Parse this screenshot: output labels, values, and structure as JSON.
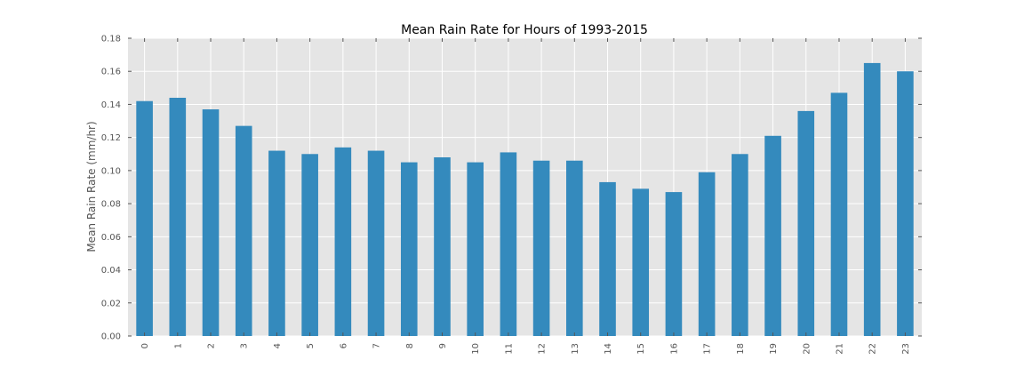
{
  "chart_data": {
    "type": "bar",
    "title": "Mean Rain Rate for Hours of 1993-2015",
    "xlabel": "",
    "ylabel": "Mean Rain Rate (mm/hr)",
    "categories": [
      "0",
      "1",
      "2",
      "3",
      "4",
      "5",
      "6",
      "7",
      "8",
      "9",
      "10",
      "11",
      "12",
      "13",
      "14",
      "15",
      "16",
      "17",
      "18",
      "19",
      "20",
      "21",
      "22",
      "23"
    ],
    "values": [
      0.142,
      0.144,
      0.137,
      0.127,
      0.112,
      0.11,
      0.114,
      0.112,
      0.105,
      0.108,
      0.105,
      0.111,
      0.106,
      0.106,
      0.093,
      0.089,
      0.087,
      0.099,
      0.11,
      0.121,
      0.136,
      0.147,
      0.165,
      0.16
    ],
    "ylim": [
      0,
      0.18
    ],
    "yticks": [
      "0.00",
      "0.02",
      "0.04",
      "0.06",
      "0.08",
      "0.10",
      "0.12",
      "0.14",
      "0.16",
      "0.18"
    ],
    "grid": true,
    "legend": "none",
    "bar_color": "#348abd",
    "plot_background": "#e5e5e5",
    "grid_color": "#ffffff"
  }
}
